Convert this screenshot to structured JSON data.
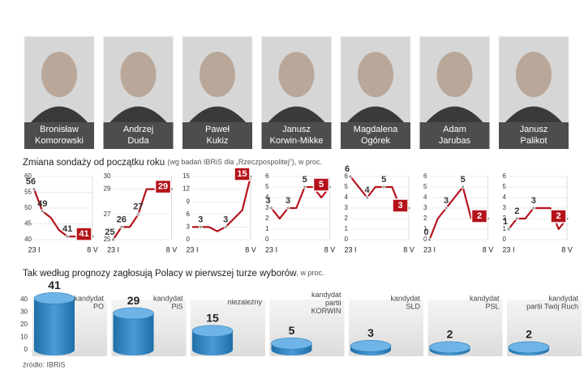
{
  "candidates": [
    {
      "first": "Bronisław",
      "last": "Komorowski"
    },
    {
      "first": "Andrzej",
      "last": "Duda"
    },
    {
      "first": "Paweł",
      "last": "Kukiz"
    },
    {
      "first": "Janusz",
      "last": "Korwin-Mikke"
    },
    {
      "first": "Magdalena",
      "last": "Ogórek"
    },
    {
      "first": "Adam",
      "last": "Jarubas"
    },
    {
      "first": "Janusz",
      "last": "Palikot"
    }
  ],
  "trend_title": "Zmiana sondaży od początku roku",
  "trend_note": "(wg badań IBRiS dla „Rzeczpospolitej”), w proc.",
  "source": "źródło: IBRiS",
  "chart_data": [
    {
      "type": "line",
      "color": "#b5121b",
      "grid": true,
      "categories": [
        "23 I",
        null,
        null,
        null,
        null,
        null,
        null,
        "8 V"
      ],
      "values": [
        56,
        49,
        47,
        43,
        41,
        41,
        42,
        41
      ],
      "value_labels": [
        "56",
        "49",
        null,
        null,
        "41",
        null,
        null,
        "41"
      ],
      "ylim": [
        40,
        60
      ],
      "yticks": [
        40,
        45,
        50,
        55,
        60
      ]
    },
    {
      "type": "line",
      "color": "#b5121b",
      "grid": true,
      "categories": [
        "23 I",
        null,
        null,
        null,
        null,
        null,
        null,
        "8 V"
      ],
      "values": [
        25,
        26,
        26,
        27,
        29,
        29,
        29,
        29
      ],
      "value_labels": [
        "25",
        "26",
        null,
        "27",
        null,
        null,
        null,
        "29"
      ],
      "ylim": [
        25,
        30
      ],
      "yticks": [
        25,
        27,
        29,
        30
      ]
    },
    {
      "type": "line",
      "color": "#b5121b",
      "grid": true,
      "categories": [
        "23 I",
        null,
        null,
        null,
        null,
        null,
        null,
        "8 V"
      ],
      "values": [
        3,
        3,
        3,
        2,
        3,
        5,
        7,
        15
      ],
      "value_labels": [
        null,
        "3",
        null,
        null,
        "3",
        null,
        null,
        "15"
      ],
      "ylim": [
        0,
        15
      ],
      "yticks": [
        0,
        3,
        6,
        9,
        12,
        15
      ]
    },
    {
      "type": "line",
      "color": "#b5121b",
      "grid": true,
      "categories": [
        "23 I",
        null,
        null,
        null,
        null,
        null,
        null,
        "8 V"
      ],
      "values": [
        3,
        2,
        3,
        3,
        5,
        5,
        4,
        5
      ],
      "value_labels": [
        "3",
        null,
        "3",
        null,
        "5",
        null,
        null,
        "5"
      ],
      "ylim": [
        0,
        6
      ],
      "yticks": [
        0,
        1,
        2,
        3,
        4,
        5,
        6
      ]
    },
    {
      "type": "line",
      "color": "#b5121b",
      "grid": true,
      "categories": [
        "23 I",
        null,
        null,
        null,
        null,
        null,
        null,
        "8 V"
      ],
      "values": [
        6,
        5,
        4,
        5,
        5,
        5,
        3,
        3
      ],
      "value_labels": [
        "6",
        null,
        "4",
        null,
        "5",
        null,
        null,
        "3"
      ],
      "ylim": [
        0,
        6
      ],
      "yticks": [
        0,
        1,
        2,
        3,
        4,
        5,
        6
      ]
    },
    {
      "type": "line",
      "color": "#b5121b",
      "grid": true,
      "categories": [
        "23 I",
        null,
        null,
        null,
        null,
        null,
        null,
        "8 V"
      ],
      "values": [
        0,
        2,
        3,
        4,
        5,
        2,
        2,
        2
      ],
      "value_labels": [
        "0",
        null,
        "3",
        null,
        "5",
        null,
        null,
        "2"
      ],
      "ylim": [
        0,
        6
      ],
      "yticks": [
        0,
        1,
        2,
        3,
        4,
        5,
        6
      ]
    },
    {
      "type": "line",
      "color": "#b5121b",
      "grid": true,
      "categories": [
        "23 I",
        null,
        null,
        null,
        null,
        null,
        null,
        "8 V"
      ],
      "values": [
        1,
        2,
        2,
        3,
        3,
        3,
        1,
        2
      ],
      "value_labels": [
        "1",
        "2",
        null,
        "3",
        null,
        null,
        null,
        "2"
      ],
      "ylim": [
        0,
        6
      ],
      "yticks": [
        0,
        1,
        2,
        3,
        4,
        5,
        6
      ]
    },
    {
      "type": "bar",
      "color": "#3a8ccb",
      "title": "Tak według prognozy zagłosują Polacy w pierwszej turze wyborów",
      "subtitle": ", w proc.",
      "categories": [
        [
          "kandydat",
          "PO"
        ],
        [
          "kandydat",
          "PiS"
        ],
        [
          "niezależny"
        ],
        [
          "kandydat",
          "partii",
          "KORWIN"
        ],
        [
          "kandydat",
          "SLD"
        ],
        [
          "kandydat",
          "PSL"
        ],
        [
          "kandydat",
          "partii Twój Ruch"
        ]
      ],
      "values": [
        41,
        29,
        15,
        5,
        3,
        2,
        2
      ],
      "ylim": [
        0,
        40
      ],
      "yticks": [
        0,
        10,
        20,
        30,
        40
      ]
    }
  ]
}
